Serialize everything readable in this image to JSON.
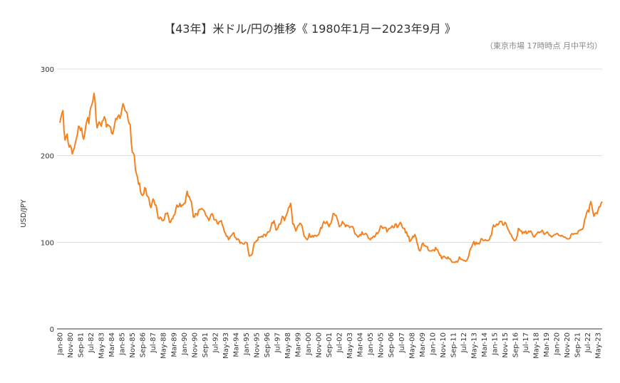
{
  "chart_data": {
    "type": "line",
    "title": "【43年】米ドル/円の推移《 1980年1月ー2023年9月 》",
    "subtitle": "（東京市場 17時時点 月中平均）",
    "y_label": "USD/JPY",
    "ylim": [
      0,
      300
    ],
    "yticks": [
      0,
      100,
      200,
      300
    ],
    "grid": true,
    "categories": [
      "Jan-80",
      null,
      null,
      null,
      null,
      null,
      null,
      null,
      null,
      null,
      "Nov-80",
      null,
      null,
      null,
      null,
      null,
      null,
      null,
      null,
      null,
      "Sep-81",
      null,
      null,
      null,
      null,
      null,
      null,
      null,
      null,
      null,
      "Jul-82",
      null,
      null,
      null,
      null,
      null,
      null,
      null,
      null,
      null,
      "May-83",
      null,
      null,
      null,
      null,
      null,
      null,
      null,
      null,
      null,
      "Mar-84",
      null,
      null,
      null,
      null,
      null,
      null,
      null,
      null,
      null,
      "Jan-85",
      null,
      null,
      null,
      null,
      null,
      null,
      null,
      null,
      null,
      "Nov-85",
      null,
      null,
      null,
      null,
      null,
      null,
      null,
      null,
      null,
      "Sep-86",
      null,
      null,
      null,
      null,
      null,
      null,
      null,
      null,
      null,
      "Jul-87",
      null,
      null,
      null,
      null,
      null,
      null,
      null,
      null,
      null,
      "May-88",
      null,
      null,
      null,
      null,
      null,
      null,
      null,
      null,
      null,
      "Mar-89",
      null,
      null,
      null,
      null,
      null,
      null,
      null,
      null,
      null,
      "Jan-90",
      null,
      null,
      null,
      null,
      null,
      null,
      null,
      null,
      null,
      "Nov-90",
      null,
      null,
      null,
      null,
      null,
      null,
      null,
      null,
      null,
      "Sep-91",
      null,
      null,
      null,
      null,
      null,
      null,
      null,
      null,
      null,
      "Jul-92",
      null,
      null,
      null,
      null,
      null,
      null,
      null,
      null,
      null,
      "May-93",
      null,
      null,
      null,
      null,
      null,
      null,
      null,
      null,
      null,
      "Mar-94",
      null,
      null,
      null,
      null,
      null,
      null,
      null,
      null,
      null,
      "Jan-95",
      null,
      null,
      null,
      null,
      null,
      null,
      null,
      null,
      null,
      "Nov-95",
      null,
      null,
      null,
      null,
      null,
      null,
      null,
      null,
      null,
      "Sep-96",
      null,
      null,
      null,
      null,
      null,
      null,
      null,
      null,
      null,
      "Jul-97",
      null,
      null,
      null,
      null,
      null,
      null,
      null,
      null,
      null,
      "May-98",
      null,
      null,
      null,
      null,
      null,
      null,
      null,
      null,
      null,
      "Mar-99",
      null,
      null,
      null,
      null,
      null,
      null,
      null,
      null,
      null,
      "Jan-00",
      null,
      null,
      null,
      null,
      null,
      null,
      null,
      null,
      null,
      "Nov-00",
      null,
      null,
      null,
      null,
      null,
      null,
      null,
      null,
      null,
      "Sep-01",
      null,
      null,
      null,
      null,
      null,
      null,
      null,
      null,
      null,
      "Jul-02",
      null,
      null,
      null,
      null,
      null,
      null,
      null,
      null,
      null,
      "May-03",
      null,
      null,
      null,
      null,
      null,
      null,
      null,
      null,
      null,
      "Mar-04",
      null,
      null,
      null,
      null,
      null,
      null,
      null,
      null,
      null,
      "Jan-05",
      null,
      null,
      null,
      null,
      null,
      null,
      null,
      null,
      null,
      "Nov-05",
      null,
      null,
      null,
      null,
      null,
      null,
      null,
      null,
      null,
      "Sep-06",
      null,
      null,
      null,
      null,
      null,
      null,
      null,
      null,
      null,
      "Jul-07",
      null,
      null,
      null,
      null,
      null,
      null,
      null,
      null,
      null,
      "May-08",
      null,
      null,
      null,
      null,
      null,
      null,
      null,
      null,
      null,
      "Mar-09",
      null,
      null,
      null,
      null,
      null,
      null,
      null,
      null,
      null,
      "Jan-10",
      null,
      null,
      null,
      null,
      null,
      null,
      null,
      null,
      null,
      "Nov-10",
      null,
      null,
      null,
      null,
      null,
      null,
      null,
      null,
      null,
      "Sep-11",
      null,
      null,
      null,
      null,
      null,
      null,
      null,
      null,
      null,
      "Jul-12",
      null,
      null,
      null,
      null,
      null,
      null,
      null,
      null,
      null,
      "May-13",
      null,
      null,
      null,
      null,
      null,
      null,
      null,
      null,
      null,
      "Mar-14",
      null,
      null,
      null,
      null,
      null,
      null,
      null,
      null,
      null,
      "Jan-15",
      null,
      null,
      null,
      null,
      null,
      null,
      null,
      null,
      null,
      "Nov-15",
      null,
      null,
      null,
      null,
      null,
      null,
      null,
      null,
      null,
      "Sep-16",
      null,
      null,
      null,
      null,
      null,
      null,
      null,
      null,
      null,
      "Jul-17",
      null,
      null,
      null,
      null,
      null,
      null,
      null,
      null,
      null,
      "May-18",
      null,
      null,
      null,
      null,
      null,
      null,
      null,
      null,
      null,
      "Mar-19",
      null,
      null,
      null,
      null,
      null,
      null,
      null,
      null,
      null,
      "Jan-20",
      null,
      null,
      null,
      null,
      null,
      null,
      null,
      null,
      null,
      "Nov-20",
      null,
      null,
      null,
      null,
      null,
      null,
      null,
      null,
      null,
      "Sep-21",
      null,
      null,
      null,
      null,
      null,
      null,
      null,
      null,
      null,
      "Jul-22",
      null,
      null,
      null,
      null,
      null,
      null,
      null,
      null,
      null,
      "May-23",
      null,
      null,
      null,
      null
    ],
    "series": [
      {
        "name": "USD/JPY",
        "color": "#f5821f",
        "values": [
          238,
          244,
          249,
          252,
          229,
          218,
          222,
          225,
          215,
          210,
          212,
          209,
          202,
          206,
          209,
          215,
          220,
          225,
          234,
          233,
          229,
          232,
          223,
          219,
          225,
          234,
          240,
          244,
          237,
          251,
          256,
          259,
          264,
          272,
          263,
          242,
          232,
          236,
          239,
          237,
          234,
          240,
          241,
          245,
          242,
          233,
          236,
          235,
          234,
          233,
          226,
          225,
          230,
          237,
          243,
          242,
          245,
          247,
          243,
          247,
          254,
          260,
          257,
          252,
          251,
          249,
          241,
          237,
          236,
          215,
          204,
          203,
          200,
          184,
          179,
          175,
          167,
          168,
          158,
          155,
          154,
          156,
          163,
          162,
          154,
          153,
          151,
          143,
          140,
          145,
          150,
          148,
          143,
          143,
          135,
          128,
          127,
          129,
          128,
          125,
          125,
          127,
          133,
          133,
          134,
          129,
          123,
          123,
          127,
          127,
          131,
          132,
          138,
          143,
          141,
          141,
          145,
          141,
          143,
          143,
          145,
          145,
          153,
          159,
          153,
          153,
          149,
          147,
          139,
          129,
          129,
          133,
          133,
          131,
          137,
          138,
          138,
          139,
          138,
          137,
          135,
          131,
          130,
          128,
          125,
          128,
          132,
          133,
          131,
          126,
          126,
          126,
          122,
          121,
          124,
          124,
          125,
          120,
          117,
          112,
          110,
          107,
          107,
          103,
          105,
          107,
          108,
          110,
          111,
          106,
          105,
          103,
          104,
          103,
          99,
          100,
          99,
          98,
          98,
          100,
          100,
          99,
          90,
          84,
          85,
          85,
          87,
          95,
          100,
          100,
          102,
          102,
          106,
          106,
          106,
          107,
          106,
          109,
          109,
          107,
          110,
          112,
          112,
          113,
          118,
          123,
          122,
          125,
          119,
          114,
          115,
          118,
          121,
          121,
          125,
          130,
          129,
          125,
          129,
          132,
          135,
          140,
          141,
          145,
          135,
          121,
          121,
          117,
          113,
          116,
          119,
          120,
          122,
          121,
          119,
          113,
          107,
          106,
          104,
          103,
          105,
          110,
          106,
          106,
          108,
          106,
          108,
          108,
          107,
          108,
          109,
          112,
          117,
          116,
          121,
          124,
          122,
          122,
          124,
          121,
          118,
          121,
          122,
          127,
          133,
          133,
          131,
          131,
          127,
          123,
          118,
          119,
          120,
          124,
          122,
          121,
          118,
          120,
          119,
          119,
          117,
          118,
          118,
          118,
          115,
          110,
          109,
          108,
          106,
          107,
          109,
          108,
          112,
          109,
          109,
          110,
          110,
          108,
          105,
          104,
          103,
          105,
          105,
          107,
          106,
          108,
          111,
          110,
          112,
          115,
          119,
          118,
          116,
          117,
          117,
          117,
          112,
          114,
          116,
          116,
          117,
          119,
          117,
          117,
          121,
          121,
          117,
          119,
          121,
          123,
          121,
          117,
          116,
          116,
          111,
          112,
          107,
          107,
          101,
          102,
          104,
          107,
          106,
          109,
          106,
          100,
          96,
          91,
          90,
          93,
          98,
          99,
          96,
          96,
          95,
          95,
          91,
          90,
          90,
          90,
          91,
          91,
          90,
          94,
          92,
          91,
          88,
          85,
          85,
          81,
          83,
          84,
          83,
          82,
          81,
          83,
          81,
          81,
          79,
          77,
          77,
          77,
          77,
          78,
          77,
          79,
          83,
          81,
          80,
          80,
          79,
          79,
          78,
          79,
          81,
          84,
          90,
          93,
          95,
          98,
          101,
          97,
          100,
          98,
          99,
          98,
          100,
          104,
          104,
          102,
          102,
          103,
          102,
          102,
          102,
          103,
          107,
          108,
          116,
          120,
          118,
          119,
          121,
          120,
          121,
          124,
          124,
          124,
          120,
          120,
          123,
          122,
          118,
          115,
          113,
          110,
          109,
          106,
          104,
          102,
          102,
          104,
          108,
          116,
          115,
          113,
          113,
          110,
          112,
          111,
          113,
          110,
          111,
          113,
          112,
          113,
          111,
          108,
          106,
          107,
          109,
          110,
          112,
          111,
          112,
          112,
          114,
          112,
          109,
          110,
          111,
          112,
          110,
          108,
          108,
          106,
          107,
          108,
          109,
          109,
          110,
          110,
          108,
          108,
          107,
          108,
          107,
          106,
          106,
          105,
          104,
          104,
          104,
          105,
          109,
          110,
          109,
          110,
          110,
          110,
          110,
          113,
          114,
          114,
          115,
          115,
          118,
          126,
          129,
          134,
          137,
          135,
          143,
          147,
          142,
          135,
          130,
          133,
          134,
          133,
          137,
          141,
          141,
          145,
          147
        ]
      }
    ]
  }
}
